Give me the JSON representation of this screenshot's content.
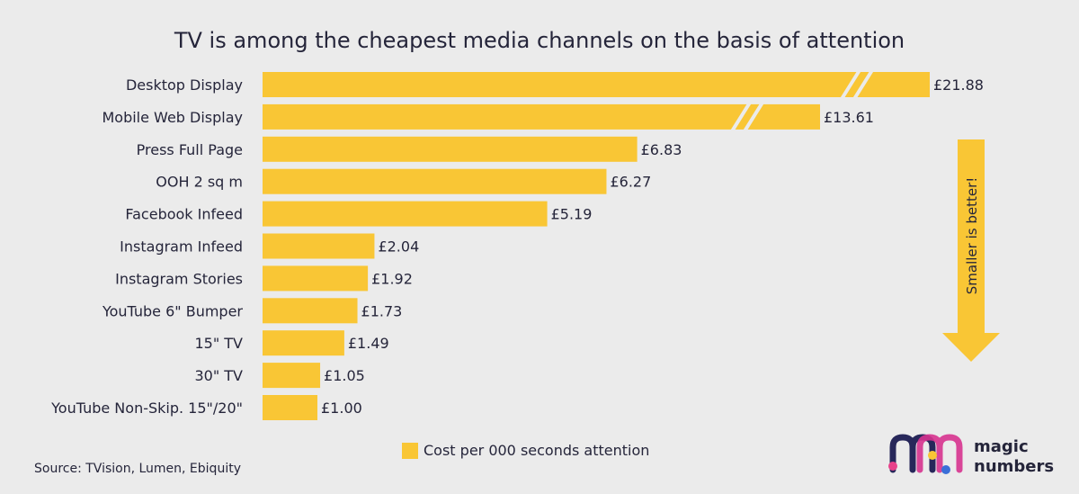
{
  "chart_data": {
    "type": "bar",
    "orientation": "horizontal",
    "title": "TV is among the cheapest media channels on the basis of attention",
    "categories": [
      "Desktop Display",
      "Mobile Web Display",
      "Press Full Page",
      "OOH 2 sq m",
      "Facebook Infeed",
      "Instagram Infeed",
      "Instagram Stories",
      "YouTube 6\" Bumper",
      "15\" TV",
      "30\" TV",
      "YouTube Non-Skip. 15\"/20\""
    ],
    "values": [
      21.88,
      13.61,
      6.83,
      6.27,
      5.19,
      2.04,
      1.92,
      1.73,
      1.49,
      1.05,
      1.0
    ],
    "value_labels": [
      "£21.88",
      "£13.61",
      "£6.83",
      "£6.27",
      "£5.19",
      "£2.04",
      "£1.92",
      "£1.73",
      "£1.49",
      "£1.05",
      "£1.00"
    ],
    "broken_axis_bars": [
      0,
      1
    ],
    "series": [
      {
        "name": "Cost per 000 seconds attention",
        "values": [
          21.88,
          13.61,
          6.83,
          6.27,
          5.19,
          2.04,
          1.92,
          1.73,
          1.49,
          1.05,
          1.0
        ]
      }
    ],
    "legend_position": "bottom-center",
    "grid": false,
    "annotation": "Smaller is better!",
    "source": "Source: TVision, Lumen, Ebiquity"
  },
  "logo": {
    "line1": "magic",
    "line2": "numbers"
  },
  "colors": {
    "background": "#ebebeb",
    "bar": "#f9c635",
    "text": "#25253a",
    "logo_navy": "#27275a",
    "logo_magenta": "#d7338f",
    "logo_pink": "#e8418a",
    "logo_blue": "#3b6fd8",
    "logo_yellow": "#f9c635"
  }
}
